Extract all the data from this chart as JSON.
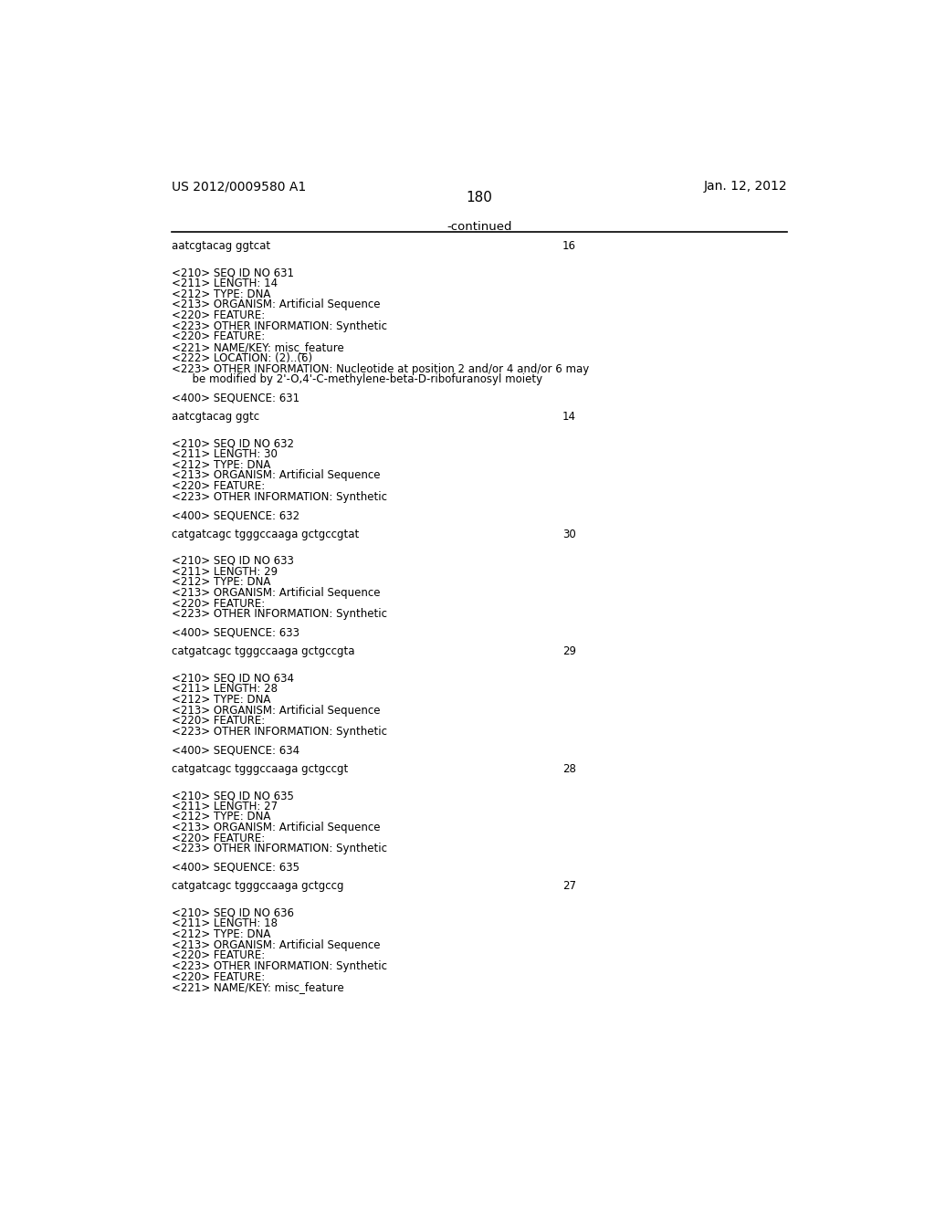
{
  "header_left": "US 2012/0009580 A1",
  "header_right": "Jan. 12, 2012",
  "page_number": "180",
  "continued_label": "-continued",
  "background_color": "#ffffff",
  "text_color": "#000000",
  "mono_font_size": 8.5,
  "lines": [
    {
      "text": "aatcgtacag ggtcat",
      "type": "sequence",
      "num": "16"
    },
    {
      "text": "",
      "type": "blank"
    },
    {
      "text": "",
      "type": "blank"
    },
    {
      "text": "<210> SEQ ID NO 631",
      "type": "mono"
    },
    {
      "text": "<211> LENGTH: 14",
      "type": "mono"
    },
    {
      "text": "<212> TYPE: DNA",
      "type": "mono"
    },
    {
      "text": "<213> ORGANISM: Artificial Sequence",
      "type": "mono"
    },
    {
      "text": "<220> FEATURE:",
      "type": "mono"
    },
    {
      "text": "<223> OTHER INFORMATION: Synthetic",
      "type": "mono"
    },
    {
      "text": "<220> FEATURE:",
      "type": "mono"
    },
    {
      "text": "<221> NAME/KEY: misc_feature",
      "type": "mono"
    },
    {
      "text": "<222> LOCATION: (2)..(6)",
      "type": "mono"
    },
    {
      "text": "<223> OTHER INFORMATION: Nucleotide at position 2 and/or 4 and/or 6 may",
      "type": "mono"
    },
    {
      "text": "      be modified by 2'-O,4'-C-methylene-beta-D-ribofuranosyl moiety",
      "type": "mono"
    },
    {
      "text": "",
      "type": "blank"
    },
    {
      "text": "<400> SEQUENCE: 631",
      "type": "mono"
    },
    {
      "text": "",
      "type": "blank"
    },
    {
      "text": "aatcgtacag ggtc",
      "type": "sequence",
      "num": "14"
    },
    {
      "text": "",
      "type": "blank"
    },
    {
      "text": "",
      "type": "blank"
    },
    {
      "text": "<210> SEQ ID NO 632",
      "type": "mono"
    },
    {
      "text": "<211> LENGTH: 30",
      "type": "mono"
    },
    {
      "text": "<212> TYPE: DNA",
      "type": "mono"
    },
    {
      "text": "<213> ORGANISM: Artificial Sequence",
      "type": "mono"
    },
    {
      "text": "<220> FEATURE:",
      "type": "mono"
    },
    {
      "text": "<223> OTHER INFORMATION: Synthetic",
      "type": "mono"
    },
    {
      "text": "",
      "type": "blank"
    },
    {
      "text": "<400> SEQUENCE: 632",
      "type": "mono"
    },
    {
      "text": "",
      "type": "blank"
    },
    {
      "text": "catgatcagc tgggccaaga gctgccgtat",
      "type": "sequence",
      "num": "30"
    },
    {
      "text": "",
      "type": "blank"
    },
    {
      "text": "",
      "type": "blank"
    },
    {
      "text": "<210> SEQ ID NO 633",
      "type": "mono"
    },
    {
      "text": "<211> LENGTH: 29",
      "type": "mono"
    },
    {
      "text": "<212> TYPE: DNA",
      "type": "mono"
    },
    {
      "text": "<213> ORGANISM: Artificial Sequence",
      "type": "mono"
    },
    {
      "text": "<220> FEATURE:",
      "type": "mono"
    },
    {
      "text": "<223> OTHER INFORMATION: Synthetic",
      "type": "mono"
    },
    {
      "text": "",
      "type": "blank"
    },
    {
      "text": "<400> SEQUENCE: 633",
      "type": "mono"
    },
    {
      "text": "",
      "type": "blank"
    },
    {
      "text": "catgatcagc tgggccaaga gctgccgta",
      "type": "sequence",
      "num": "29"
    },
    {
      "text": "",
      "type": "blank"
    },
    {
      "text": "",
      "type": "blank"
    },
    {
      "text": "<210> SEQ ID NO 634",
      "type": "mono"
    },
    {
      "text": "<211> LENGTH: 28",
      "type": "mono"
    },
    {
      "text": "<212> TYPE: DNA",
      "type": "mono"
    },
    {
      "text": "<213> ORGANISM: Artificial Sequence",
      "type": "mono"
    },
    {
      "text": "<220> FEATURE:",
      "type": "mono"
    },
    {
      "text": "<223> OTHER INFORMATION: Synthetic",
      "type": "mono"
    },
    {
      "text": "",
      "type": "blank"
    },
    {
      "text": "<400> SEQUENCE: 634",
      "type": "mono"
    },
    {
      "text": "",
      "type": "blank"
    },
    {
      "text": "catgatcagc tgggccaaga gctgccgt",
      "type": "sequence",
      "num": "28"
    },
    {
      "text": "",
      "type": "blank"
    },
    {
      "text": "",
      "type": "blank"
    },
    {
      "text": "<210> SEQ ID NO 635",
      "type": "mono"
    },
    {
      "text": "<211> LENGTH: 27",
      "type": "mono"
    },
    {
      "text": "<212> TYPE: DNA",
      "type": "mono"
    },
    {
      "text": "<213> ORGANISM: Artificial Sequence",
      "type": "mono"
    },
    {
      "text": "<220> FEATURE:",
      "type": "mono"
    },
    {
      "text": "<223> OTHER INFORMATION: Synthetic",
      "type": "mono"
    },
    {
      "text": "",
      "type": "blank"
    },
    {
      "text": "<400> SEQUENCE: 635",
      "type": "mono"
    },
    {
      "text": "",
      "type": "blank"
    },
    {
      "text": "catgatcagc tgggccaaga gctgccg",
      "type": "sequence",
      "num": "27"
    },
    {
      "text": "",
      "type": "blank"
    },
    {
      "text": "",
      "type": "blank"
    },
    {
      "text": "<210> SEQ ID NO 636",
      "type": "mono"
    },
    {
      "text": "<211> LENGTH: 18",
      "type": "mono"
    },
    {
      "text": "<212> TYPE: DNA",
      "type": "mono"
    },
    {
      "text": "<213> ORGANISM: Artificial Sequence",
      "type": "mono"
    },
    {
      "text": "<220> FEATURE:",
      "type": "mono"
    },
    {
      "text": "<223> OTHER INFORMATION: Synthetic",
      "type": "mono"
    },
    {
      "text": "<220> FEATURE:",
      "type": "mono"
    },
    {
      "text": "<221> NAME/KEY: misc_feature",
      "type": "mono"
    }
  ]
}
